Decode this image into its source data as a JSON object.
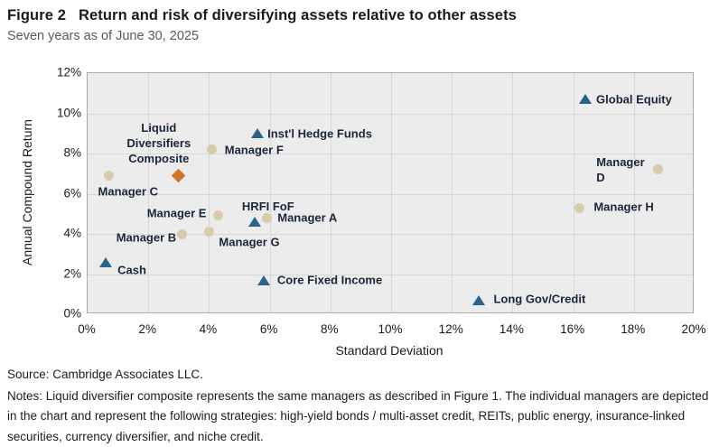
{
  "header": {
    "figure_label": "Figure 2",
    "title": "Return and risk of diversifying assets relative to other assets",
    "subtitle": "Seven years as of June 30, 2025"
  },
  "chart_data": {
    "type": "scatter",
    "xlabel": "Standard Deviation",
    "ylabel": "Annual Compound Return",
    "xlim": [
      0,
      20
    ],
    "ylim": [
      0,
      12
    ],
    "x_tick_step": 2,
    "y_tick_step": 2,
    "x_tick_labels": [
      "0%",
      "2%",
      "4%",
      "6%",
      "8%",
      "10%",
      "12%",
      "14%",
      "16%",
      "18%",
      "20%"
    ],
    "y_tick_labels": [
      "0%",
      "2%",
      "4%",
      "6%",
      "8%",
      "10%",
      "12%"
    ],
    "grid": true,
    "series": [
      {
        "name": "asset-classes",
        "marker": "triangle",
        "color": "#2A6389",
        "points": [
          {
            "label": "Global Equity",
            "x": 16.4,
            "y": 10.7,
            "anchor": "right",
            "dx": 12,
            "dy": 0
          },
          {
            "label": "Inst'l Hedge Funds",
            "x": 5.6,
            "y": 9.0,
            "anchor": "right",
            "dx": 11,
            "dy": 0
          },
          {
            "label": "HRFI FoF",
            "x": 5.5,
            "y": 4.6,
            "anchor": "above",
            "dx": 15,
            "dy": -9
          },
          {
            "label": "Cash",
            "x": 0.6,
            "y": 2.6,
            "anchor": "right",
            "dx": 13,
            "dy": 9
          },
          {
            "label": "Core Fixed Income",
            "x": 5.8,
            "y": 1.7,
            "anchor": "right",
            "dx": 15,
            "dy": 0
          },
          {
            "label": "Long Gov/Credit",
            "x": 12.9,
            "y": 0.7,
            "anchor": "right",
            "dx": 16,
            "dy": -1
          }
        ]
      },
      {
        "name": "individual-managers",
        "marker": "circle",
        "color": "#D8CBAA",
        "points": [
          {
            "label": "Manager F",
            "x": 4.1,
            "y": 8.2,
            "anchor": "right",
            "dx": 14,
            "dy": 0
          },
          {
            "label": "Manager D",
            "x": 18.8,
            "y": 7.2,
            "anchor": "left",
            "dx": -15,
            "dy": 0
          },
          {
            "label": "Manager C",
            "x": 0.7,
            "y": 6.9,
            "anchor": "right",
            "dx": -12,
            "dy": 18
          },
          {
            "label": "Manager H",
            "x": 16.2,
            "y": 5.3,
            "anchor": "right",
            "dx": 16,
            "dy": -1
          },
          {
            "label": "Manager E",
            "x": 4.3,
            "y": 4.9,
            "anchor": "left",
            "dx": -13,
            "dy": -3
          },
          {
            "label": "Manager A",
            "x": 5.9,
            "y": 4.8,
            "anchor": "right",
            "dx": 12,
            "dy": 0
          },
          {
            "label": "Manager G",
            "x": 4.0,
            "y": 4.1,
            "anchor": "right",
            "dx": 11,
            "dy": 11
          },
          {
            "label": "Manager B",
            "x": 3.1,
            "y": 4.0,
            "anchor": "left",
            "dx": -6,
            "dy": 4
          }
        ]
      },
      {
        "name": "liquid-diversifiers-composite",
        "marker": "diamond",
        "color": "#D2752B",
        "points": [
          {
            "label": "Liquid\nDiversifiers\nComposite",
            "x": 3.0,
            "y": 6.9,
            "anchor": "above",
            "dx": -22,
            "dy": -10
          }
        ]
      }
    ]
  },
  "footer": {
    "source": "Source: Cambridge Associates LLC.",
    "notes": "Notes: Liquid diversifier composite represents the same managers as described in Figure 1. The individual managers are depicted in the chart and represent the following strategies: high-yield bonds / multi-asset credit, REITs, public energy, insurance-linked securities, currency diversifier, and niche credit."
  },
  "colors": {
    "triangle": "#2A6389",
    "circle": "#D8CBAA",
    "diamond": "#D2752B",
    "plot_bg": "#ECECEC",
    "gridline": "#D8D8D8",
    "plot_border": "#ABABAB",
    "label_text": "#1B2638",
    "subtitle_text": "#595959"
  }
}
